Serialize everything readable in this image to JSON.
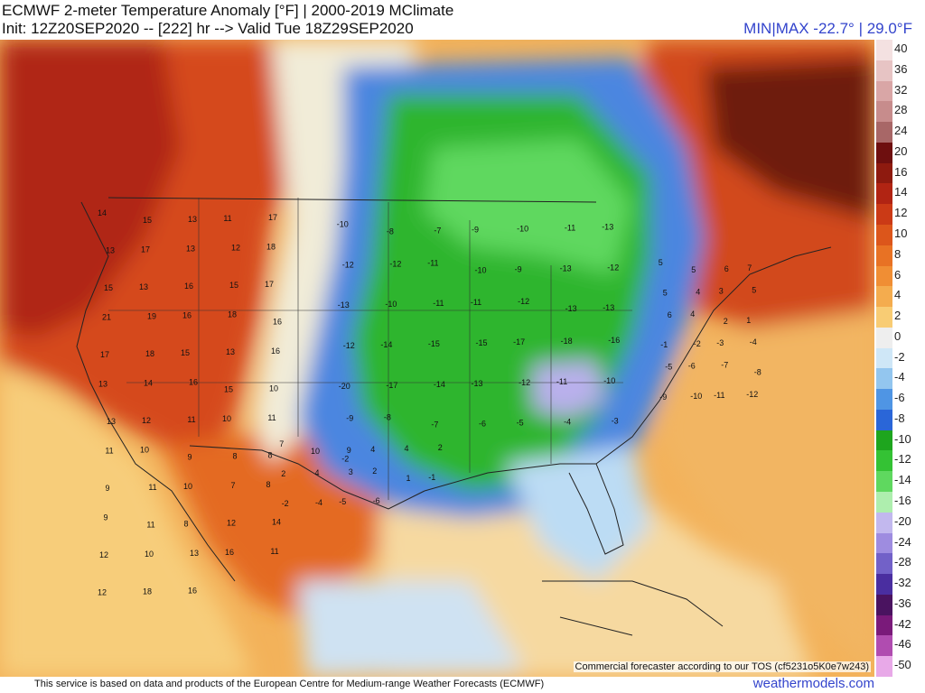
{
  "header": {
    "title": "ECMWF 2-meter Temperature Anomaly [°F] | 2000-2019 MClimate",
    "init_line": "Init: 12Z20SEP2020 -- [222] hr --> Valid Tue 18Z29SEP2020",
    "minmax": "MIN|MAX -22.7° | 29.0°F"
  },
  "footer": {
    "tos": "Commercial forecaster according to our TOS (cf5231o5K0e7w243)",
    "source": "This service is based on data and products of the European Centre for Medium-range Weather Forecasts (ECMWF)",
    "site": "weathermodels.com"
  },
  "colorbar": {
    "labels": [
      "40",
      "36",
      "32",
      "28",
      "24",
      "20",
      "16",
      "14",
      "12",
      "10",
      "8",
      "6",
      "4",
      "2",
      "0",
      "-2",
      "-4",
      "-6",
      "-8",
      "-10",
      "-12",
      "-14",
      "-16",
      "-20",
      "-24",
      "-28",
      "-32",
      "-36",
      "-42",
      "-46",
      "-50"
    ],
    "colors": [
      "#f4e1e1",
      "#e7c4c4",
      "#d9a6a6",
      "#c78c8c",
      "#a86767",
      "#6e0f0f",
      "#8e1a0f",
      "#b12413",
      "#cb3a16",
      "#dc561b",
      "#e87224",
      "#f08e34",
      "#f4ac4e",
      "#f8cc74",
      "#eeeeee",
      "#cfe7f7",
      "#93c6ef",
      "#4f95e4",
      "#2a66d8",
      "#1ea51e",
      "#34c234",
      "#5fd85f",
      "#aeeeae",
      "#c2b8ee",
      "#9e8ce0",
      "#7261c8",
      "#4a2ea0",
      "#4a1360",
      "#7a1a7a",
      "#b04cb0",
      "#e8a9e8"
    ]
  },
  "map_labels": {
    "west": [
      "14",
      "15",
      "13",
      "11",
      "17",
      "13",
      "17",
      "13",
      "12",
      "18",
      "15",
      "13",
      "16",
      "15",
      "17",
      "21",
      "19",
      "16",
      "18",
      "16",
      "17",
      "18",
      "15",
      "13",
      "16",
      "13",
      "14",
      "16",
      "15",
      "10",
      "13",
      "12",
      "11",
      "10",
      "11",
      "11",
      "10",
      "9",
      "8",
      "8",
      "9",
      "11",
      "10",
      "7",
      "8",
      "9",
      "11",
      "8",
      "12",
      "14",
      "12",
      "10",
      "13",
      "16",
      "11",
      "12",
      "18",
      "16"
    ],
    "central": [
      "-10",
      "-8",
      "-7",
      "-9",
      "-10",
      "-11",
      "-13",
      "-12",
      "-12",
      "-11",
      "-10",
      "-9",
      "-13",
      "-12",
      "-13",
      "-10",
      "-11",
      "-11",
      "-12",
      "-13",
      "-13",
      "-12",
      "-14",
      "-15",
      "-15",
      "-17",
      "-18",
      "-16",
      "-20",
      "-17",
      "-14",
      "-13",
      "-12",
      "-11",
      "-10",
      "-9",
      "-8",
      "-7",
      "-6",
      "-5",
      "-4",
      "-3",
      "-2"
    ],
    "east": [
      "5",
      "5",
      "6",
      "7",
      "5",
      "4",
      "3",
      "5",
      "6",
      "4",
      "2",
      "1",
      "-1",
      "-2",
      "-3",
      "-4",
      "-5",
      "-6",
      "-7",
      "-8",
      "-9",
      "-10",
      "-11",
      "-12"
    ],
    "south": [
      "7",
      "10",
      "9",
      "4",
      "4",
      "2",
      "2",
      "4",
      "3",
      "2",
      "1",
      "-1",
      "-2",
      "-4",
      "-5",
      "-6"
    ]
  }
}
